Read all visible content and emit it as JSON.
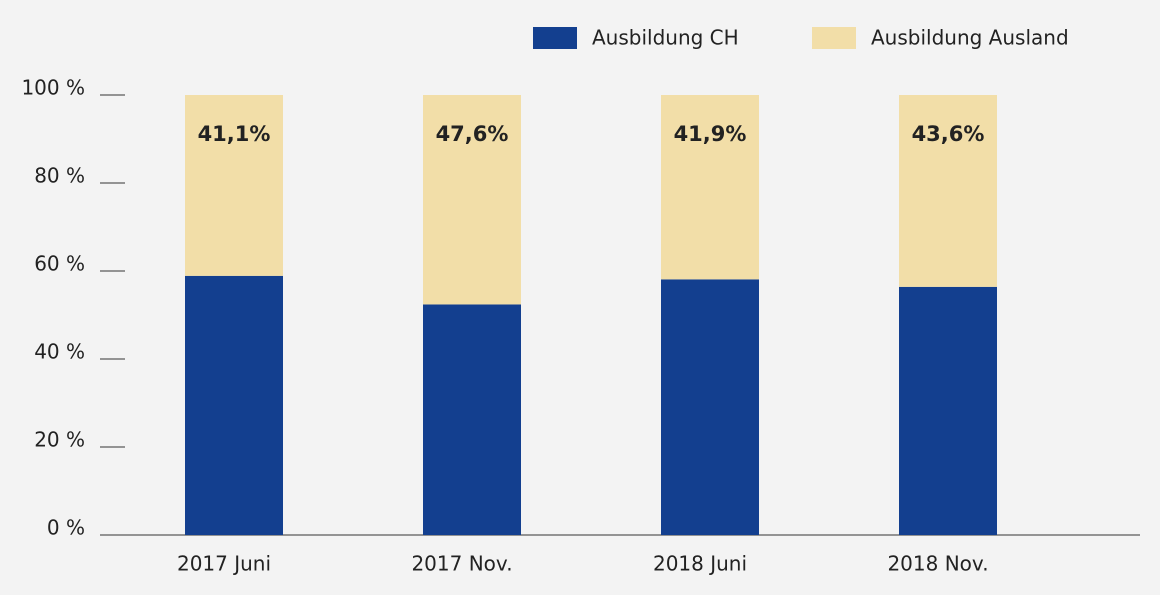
{
  "chart_data": {
    "type": "stacked_bar",
    "categories": [
      "2017 Juni",
      "2017 Nov.",
      "2018 Juni",
      "2018 Nov."
    ],
    "series": [
      {
        "name": "Ausbildung CH",
        "color": "#133f8f",
        "values": [
          58.9,
          52.4,
          58.1,
          56.4
        ]
      },
      {
        "name": "Ausbildung Ausland",
        "color": "#f2dea8",
        "values": [
          41.1,
          47.6,
          41.9,
          43.6
        ],
        "value_labels": [
          "41,1%",
          "47,6%",
          "41,9%",
          "43,6%"
        ]
      }
    ],
    "ylim": [
      0,
      100
    ],
    "yticks": [
      {
        "value": 0,
        "label": "0 %"
      },
      {
        "value": 20,
        "label": "20 %"
      },
      {
        "value": 40,
        "label": "40 %"
      },
      {
        "value": 60,
        "label": "60 %"
      },
      {
        "value": 80,
        "label": "80 %"
      },
      {
        "value": 100,
        "label": "100 %"
      }
    ],
    "legend": "top"
  }
}
